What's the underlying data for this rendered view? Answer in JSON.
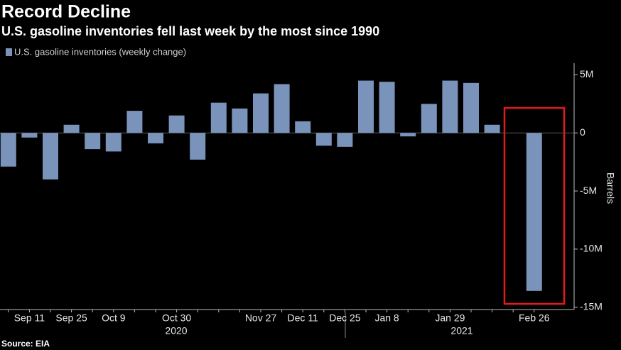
{
  "chart_data": {
    "type": "bar",
    "title": "Record Decline",
    "subtitle": "U.S. gasoline inventories fell last week by the most since 1990",
    "source": "Source: EIA",
    "y_label": "Barrels",
    "categories": [
      null,
      "Sep 11",
      null,
      "Sep 25",
      null,
      "Oct 9",
      null,
      null,
      "Oct 30",
      null,
      null,
      null,
      "Nov 27",
      null,
      "Dec 11",
      null,
      "Dec 25",
      null,
      "Jan 8",
      null,
      null,
      "Jan 29",
      null,
      null,
      null,
      "Feb 26"
    ],
    "x_groups": [
      "2020",
      "2021"
    ],
    "series": [
      {
        "name": "U.S. gasoline inventories (weekly change)",
        "color": "#7a93ba",
        "values": [
          -2900000,
          -400000,
          -4000000,
          700000,
          -1400000,
          -1600000,
          1900000,
          -900000,
          1500000,
          -2300000,
          2600000,
          2100000,
          3400000,
          4200000,
          1000000,
          -1100000,
          -1200000,
          4500000,
          4400000,
          -300000,
          2500000,
          4500000,
          4300000,
          700000,
          0,
          -13600000
        ]
      }
    ],
    "ylim": [
      -15200000,
      6000000
    ],
    "yticks": [
      {
        "value": 5000000,
        "label": "5M"
      },
      0,
      {
        "value": -5000000,
        "label": "-5M"
      },
      {
        "value": -10000000,
        "label": "-10M"
      },
      {
        "value": -15000000,
        "label": "-15M"
      }
    ]
  }
}
